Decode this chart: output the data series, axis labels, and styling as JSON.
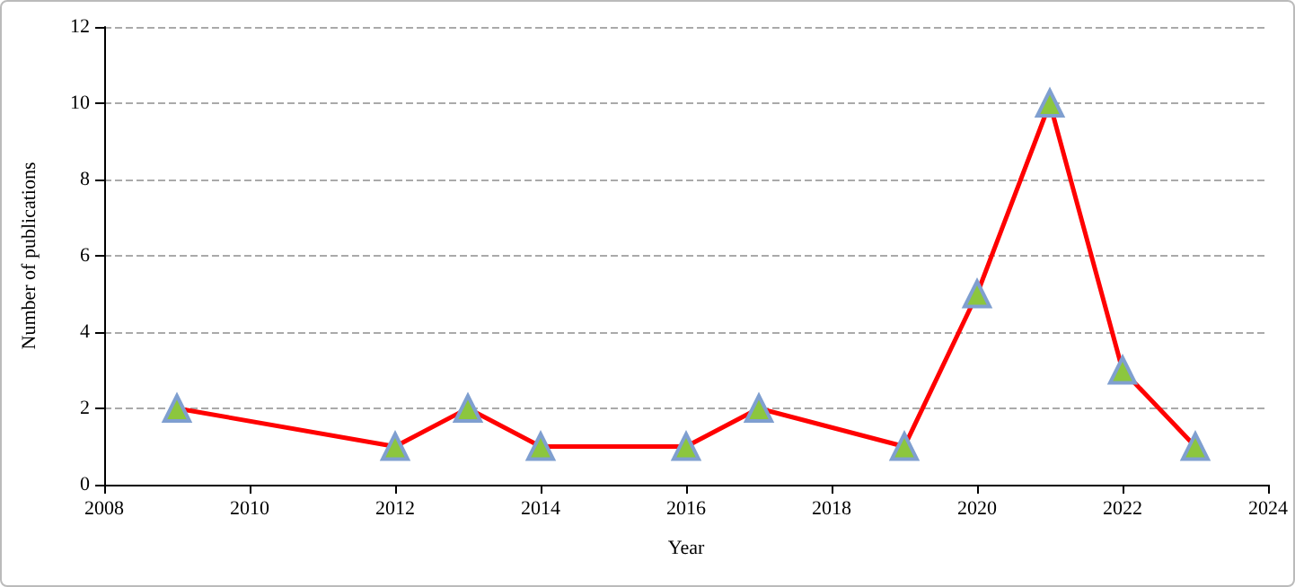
{
  "chart_data": {
    "type": "line",
    "xlabel": "Year",
    "ylabel": "Number of publications",
    "x": [
      2009,
      2012,
      2013,
      2014,
      2016,
      2017,
      2019,
      2020,
      2021,
      2022,
      2023
    ],
    "series": [
      {
        "color": "#ff0000",
        "values": [
          2,
          1,
          2,
          1,
          1,
          2,
          1,
          5,
          10,
          3,
          1
        ]
      }
    ],
    "xlim": [
      2008,
      2024
    ],
    "xticks": [
      2008,
      2010,
      2012,
      2014,
      2016,
      2018,
      2020,
      2022,
      2024
    ],
    "ylim": [
      0,
      12
    ],
    "yticks": [
      0,
      2,
      4,
      6,
      8,
      10,
      12
    ],
    "grid": "y",
    "marker": "triangle",
    "line_style": "solid"
  }
}
